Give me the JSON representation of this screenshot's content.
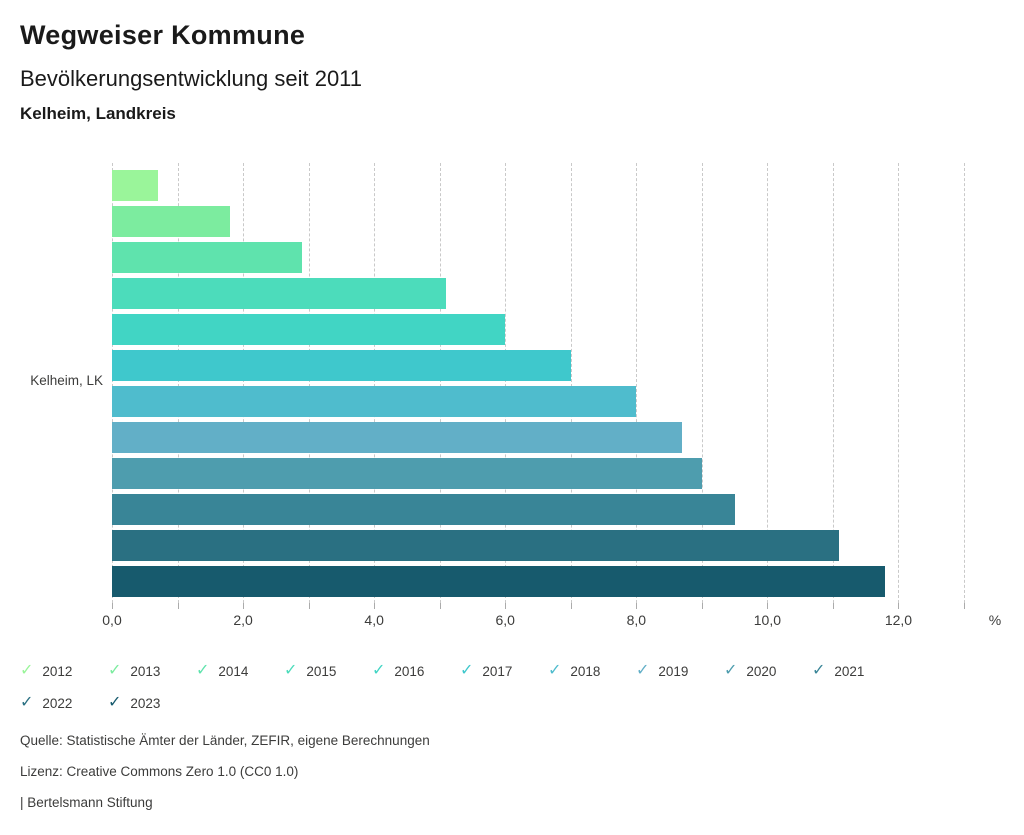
{
  "header": {
    "title": "Wegweiser Kommune",
    "subtitle": "Bevölkerungsentwicklung seit 2011",
    "region": "Kelheim, Landkreis"
  },
  "chart_data": {
    "type": "bar",
    "orientation": "horizontal",
    "title": "Bevölkerungsentwicklung seit 2011",
    "row_label": "Kelheim, LK",
    "categories": [
      "2012",
      "2013",
      "2014",
      "2015",
      "2016",
      "2017",
      "2018",
      "2019",
      "2020",
      "2021",
      "2022",
      "2023"
    ],
    "values": [
      0.7,
      1.8,
      2.9,
      5.1,
      6.0,
      7.0,
      8.0,
      8.7,
      9.0,
      9.5,
      11.1,
      11.8
    ],
    "colors": [
      "#9AF59A",
      "#7CEC9F",
      "#5FE3AD",
      "#4CDCBB",
      "#41D5C4",
      "#3FC8CC",
      "#4FBCCD",
      "#62AFC7",
      "#4E9DAE",
      "#398597",
      "#2A7082",
      "#175A6D"
    ],
    "xlabel": "%",
    "xlim": [
      0,
      13
    ],
    "xticks": [
      {
        "value": 0,
        "label": "0,0"
      },
      {
        "value": 2,
        "label": "2,0"
      },
      {
        "value": 4,
        "label": "4,0"
      },
      {
        "value": 6,
        "label": "6,0"
      },
      {
        "value": 8,
        "label": "8,0"
      },
      {
        "value": 10,
        "label": "10,0"
      },
      {
        "value": 12,
        "label": "12,0"
      }
    ],
    "gridline_every": 1,
    "minor_tick_every": 1,
    "grid": true,
    "legend_position": "bottom"
  },
  "legend": {
    "check_glyph": "✓",
    "items_per_row": 10
  },
  "footer": {
    "source": "Quelle: Statistische Ämter der Länder, ZEFIR, eigene Berechnungen",
    "license": "Lizenz: Creative Commons Zero 1.0 (CC0 1.0)",
    "brand": "| Bertelsmann Stiftung"
  }
}
